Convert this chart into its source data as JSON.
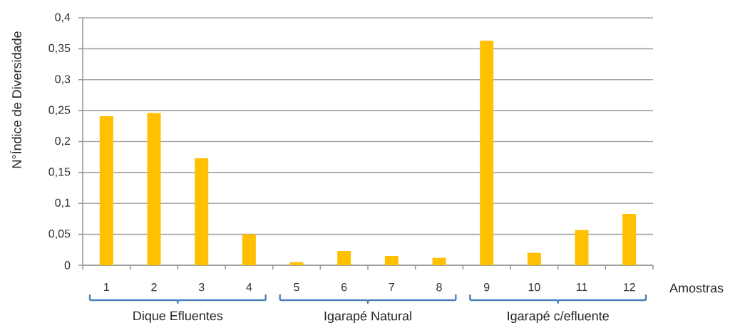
{
  "chart_data": {
    "type": "bar",
    "ylabel": "N°Índice de Diversidade",
    "xlabel": "Amostras",
    "categories": [
      "1",
      "2",
      "3",
      "4",
      "5",
      "6",
      "7",
      "8",
      "9",
      "10",
      "11",
      "12"
    ],
    "values": [
      0.241,
      0.246,
      0.173,
      0.05,
      0.005,
      0.023,
      0.015,
      0.012,
      0.363,
      0.02,
      0.057,
      0.083
    ],
    "color": "#ffc000",
    "ylim": [
      0,
      0.4
    ],
    "yticks": [
      0,
      {
        "value": 0.05,
        "label": "0,05"
      },
      {
        "value": 0.1,
        "label": "0,1"
      },
      {
        "value": 0.15,
        "label": "0,15"
      },
      {
        "value": 0.2,
        "label": "0,2"
      },
      {
        "value": 0.25,
        "label": "0,25"
      },
      {
        "value": 0.3,
        "label": "0,3"
      },
      {
        "value": 0.35,
        "label": "0,35"
      },
      {
        "value": 0.4,
        "label": "0,4"
      }
    ],
    "grid": "y",
    "annotations": [
      "Dique Efluentes",
      "Igarapé Natural",
      "Igarapé c/efluente"
    ]
  }
}
